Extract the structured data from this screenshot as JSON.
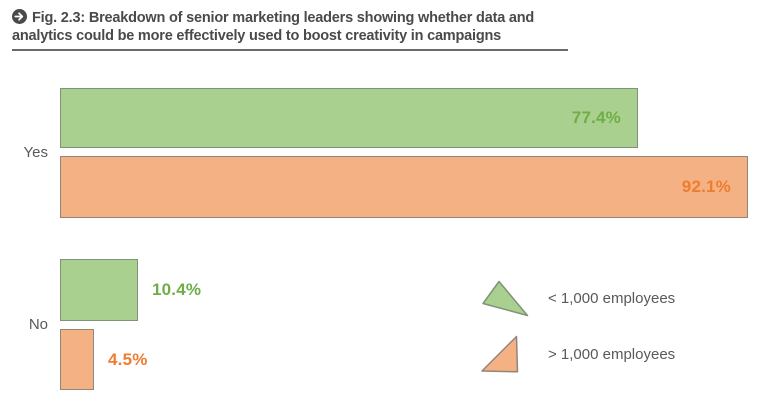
{
  "header": {
    "title": "Fig. 2.3: Breakdown of senior marketing leaders showing whether data and analytics could be more effectively used to boost creativity in campaigns",
    "icon": "arrow-right-circle",
    "icon_color": "#4a4a4a"
  },
  "chart_data": {
    "type": "bar",
    "orientation": "horizontal",
    "title": "Breakdown of senior marketing leaders showing whether data and analytics could be more effectively used to boost creativity in campaigns",
    "categories": [
      "Yes",
      "No"
    ],
    "series": [
      {
        "name": "< 1,000 employees",
        "values": [
          77.4,
          10.4
        ],
        "fill": "#a9d08e",
        "border": "#7f927a",
        "label_color": "#70ad47"
      },
      {
        "name": "> 1,000 employees",
        "values": [
          92.1,
          4.5
        ],
        "fill": "#f4b183",
        "border": "#938579",
        "label_color": "#ed7d31"
      }
    ],
    "value_suffix": "%",
    "xlim": [
      0,
      100
    ],
    "grid": false,
    "axis_lines": false,
    "legend_position": "right of No bars"
  },
  "legend": {
    "items": [
      {
        "label": "< 1,000 employees",
        "shape": "triangle",
        "fill": "#a9d08e",
        "stroke": "#7f927a"
      },
      {
        "label": "> 1,000 employees",
        "shape": "triangle",
        "fill": "#f4b183",
        "stroke": "#938579"
      }
    ]
  },
  "colors": {
    "title_text": "#4a4a4a",
    "axis_text": "#595959",
    "underline": "#6a6a6a"
  }
}
